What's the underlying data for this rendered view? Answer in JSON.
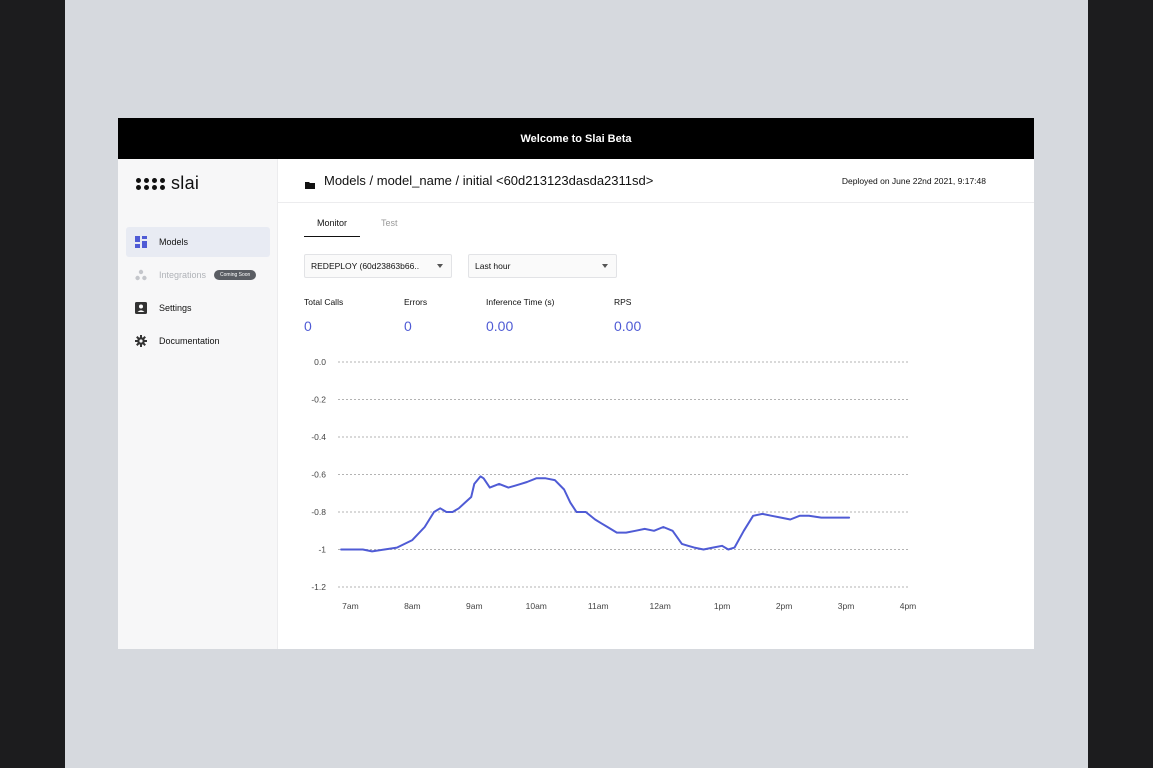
{
  "banner": {
    "title": "Welcome to Slai Beta"
  },
  "logo": {
    "text": "slai"
  },
  "sidebar": {
    "items": [
      {
        "label": "Models",
        "icon": "dashboard-icon",
        "active": true
      },
      {
        "label": "Integrations",
        "icon": "integrations-icon",
        "disabled": true,
        "badge": "Coming Soon"
      },
      {
        "label": "Settings",
        "icon": "account-box-icon"
      },
      {
        "label": "Documentation",
        "icon": "gear-icon"
      }
    ]
  },
  "header": {
    "breadcrumb": "Models / model_name / initial <60d213123dasda2311sd>",
    "deployed": "Deployed on June 22nd 2021, 9:17:48"
  },
  "tabs": [
    {
      "label": "Monitor",
      "active": true
    },
    {
      "label": "Test"
    }
  ],
  "filters": {
    "deployment": "REDEPLOY (60d23863b66..",
    "range": "Last hour"
  },
  "stats": [
    {
      "label": "Total Calls",
      "value": "0"
    },
    {
      "label": "Errors",
      "value": "0"
    },
    {
      "label": "Inference Time (s)",
      "value": "0.00"
    },
    {
      "label": "RPS",
      "value": "0.00"
    }
  ],
  "chart_data": {
    "type": "line",
    "color": "#4f5bd5",
    "x_ticks": [
      "7am",
      "8am",
      "9am",
      "10am",
      "11am",
      "12am",
      "1pm",
      "2pm",
      "3pm",
      "4pm"
    ],
    "y_ticks": [
      "0.0",
      "-0.2",
      "-0.4",
      "-0.6",
      "-0.8",
      "-1",
      "-1.2"
    ],
    "ylim": [
      -1.2,
      0
    ],
    "xlim": [
      6.8,
      16
    ],
    "grid": "horizontal dashed",
    "series": [
      {
        "x": [
          6.85,
          7.2,
          7.35,
          7.55,
          7.75,
          8.0,
          8.2,
          8.35,
          8.45,
          8.55,
          8.65,
          8.75,
          8.85,
          8.95,
          9.0,
          9.1,
          9.15,
          9.25,
          9.4,
          9.55,
          9.65,
          9.75,
          9.85,
          10.0,
          10.15,
          10.3,
          10.45,
          10.55,
          10.65,
          10.8,
          10.95,
          11.05,
          11.15,
          11.3,
          11.45,
          11.6,
          11.75,
          11.9,
          12.05,
          12.2,
          12.35,
          12.45,
          12.55,
          12.7,
          12.85,
          13.0,
          13.1,
          13.2,
          13.35,
          13.5,
          13.65,
          13.8,
          13.95,
          14.1,
          14.25,
          14.4,
          14.6,
          14.75,
          14.9,
          15.05
        ],
        "y": [
          -1.0,
          -1.0,
          -1.01,
          -1.0,
          -0.99,
          -0.95,
          -0.88,
          -0.8,
          -0.78,
          -0.8,
          -0.8,
          -0.78,
          -0.75,
          -0.72,
          -0.65,
          -0.61,
          -0.62,
          -0.67,
          -0.65,
          -0.67,
          -0.66,
          -0.65,
          -0.64,
          -0.62,
          -0.62,
          -0.63,
          -0.68,
          -0.75,
          -0.8,
          -0.8,
          -0.84,
          -0.86,
          -0.88,
          -0.91,
          -0.91,
          -0.9,
          -0.89,
          -0.9,
          -0.88,
          -0.9,
          -0.97,
          -0.98,
          -0.99,
          -1.0,
          -0.99,
          -0.98,
          -1.0,
          -0.99,
          -0.9,
          -0.82,
          -0.81,
          -0.82,
          -0.83,
          -0.84,
          -0.82,
          -0.82,
          -0.83,
          -0.83,
          -0.83,
          -0.83
        ]
      }
    ]
  }
}
